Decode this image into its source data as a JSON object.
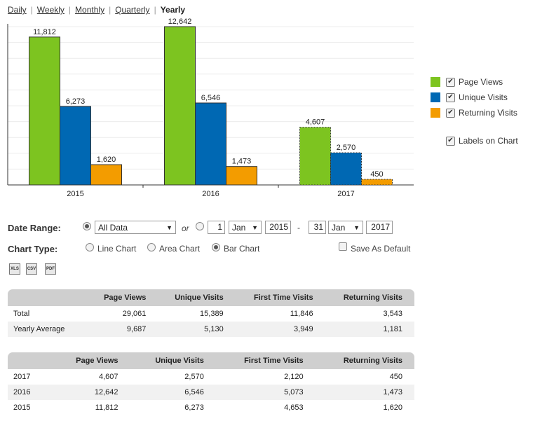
{
  "nav": {
    "items": [
      "Daily",
      "Weekly",
      "Monthly",
      "Quarterly"
    ],
    "active": "Yearly"
  },
  "chart_data": {
    "type": "bar",
    "categories": [
      "2015",
      "2016",
      "2017"
    ],
    "series": [
      {
        "name": "Page Views",
        "color": "#7dc420",
        "values": [
          11812,
          12642,
          4607
        ]
      },
      {
        "name": "Unique Visits",
        "color": "#0068b3",
        "values": [
          6273,
          6546,
          2570
        ]
      },
      {
        "name": "Returning Visits",
        "color": "#f39c00",
        "values": [
          1620,
          1473,
          450
        ]
      }
    ],
    "value_labels": [
      [
        "11,812",
        "6,273",
        "1,620"
      ],
      [
        "12,642",
        "6,546",
        "1,473"
      ],
      [
        "4,607",
        "2,570",
        "450"
      ]
    ],
    "partial_category": "2017",
    "ylim": [
      0,
      12642
    ],
    "grid": true,
    "legend": "right"
  },
  "legend": {
    "items": [
      "Page Views",
      "Unique Visits",
      "Returning Visits"
    ],
    "labels_on_chart": "Labels on Chart",
    "check_glyph": "✔"
  },
  "controls": {
    "date_range_label": "Date Range:",
    "all_data": "All Data",
    "or": "or",
    "from_day": "1",
    "from_month": "Jan",
    "from_year": "2015",
    "dash": "-",
    "to_day": "31",
    "to_month": "Jan",
    "to_year": "2017",
    "chart_type_label": "Chart Type:",
    "line_chart": "Line Chart",
    "area_chart": "Area Chart",
    "bar_chart": "Bar Chart",
    "save_default": "Save As Default",
    "arrow": "▼"
  },
  "icons": {
    "excel": "XLS",
    "csv": "CSV",
    "pdf": "PDF"
  },
  "summary": {
    "headers": [
      "",
      "Page Views",
      "Unique Visits",
      "First Time Visits",
      "Returning Visits"
    ],
    "rows": [
      [
        "Total",
        "29,061",
        "15,389",
        "11,846",
        "3,543"
      ],
      [
        "Yearly Average",
        "9,687",
        "5,130",
        "3,949",
        "1,181"
      ]
    ]
  },
  "yearly": {
    "headers": [
      "",
      "Page Views",
      "Unique Visits",
      "First Time Visits",
      "Returning Visits"
    ],
    "rows": [
      [
        "2017",
        "4,607",
        "2,570",
        "2,120",
        "450"
      ],
      [
        "2016",
        "12,642",
        "6,546",
        "5,073",
        "1,473"
      ],
      [
        "2015",
        "11,812",
        "6,273",
        "4,653",
        "1,620"
      ]
    ]
  }
}
